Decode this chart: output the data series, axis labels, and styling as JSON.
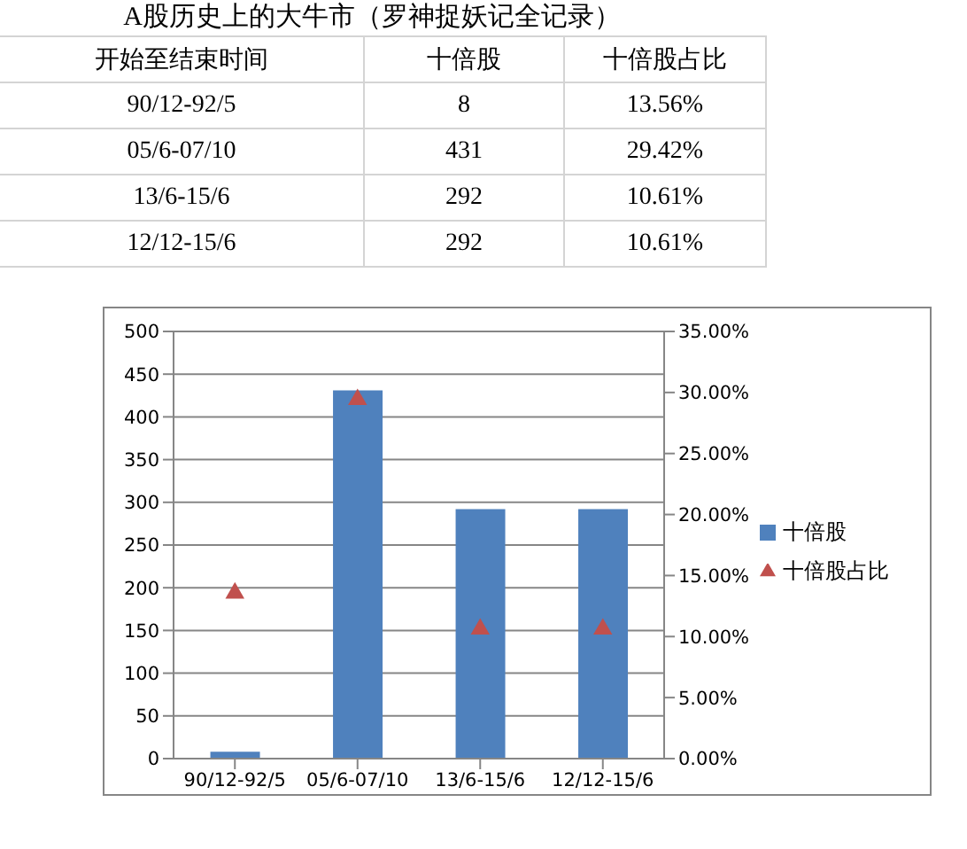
{
  "chart_data": [
    {
      "type": "other",
      "title": "A股历史上的大牛市（罗神捉妖记全记录）",
      "annotations": [
        "开始至结束时间",
        "十倍股",
        "十倍股占比",
        "90/12-92/5",
        "8",
        "13.56%",
        "05/6-07/10",
        "431",
        "29.42%",
        "13/6-15/6",
        "292",
        "10.61%",
        "12/12-15/6",
        "292",
        "10.61%"
      ]
    },
    {
      "type": "bar",
      "categories": [
        "90/12-92/5",
        "05/6-07/10",
        "13/6-15/6",
        "12/12-15/6"
      ],
      "series": [
        {
          "name": "十倍股",
          "color": "#4f81bd",
          "values": [
            8,
            431,
            292,
            292
          ]
        },
        {
          "name": "十倍股占比",
          "type": "scatter",
          "axis": "y2",
          "color": "#c0504d",
          "values": [
            13.56,
            29.42,
            10.61,
            10.61
          ]
        }
      ],
      "ylim": [
        0,
        500
      ],
      "yticks": [
        0,
        50,
        100,
        150,
        200,
        250,
        300,
        350,
        400,
        450,
        500
      ],
      "y2lim": [
        0,
        35
      ],
      "y2ticks": [
        {
          "value": 0,
          "label": "0.00%"
        },
        {
          "value": 5,
          "label": "5.00%"
        },
        {
          "value": 10,
          "label": "10.00%"
        },
        {
          "value": 15,
          "label": "15.00%"
        },
        {
          "value": 20,
          "label": "20.00%"
        },
        {
          "value": 25,
          "label": "25.00%"
        },
        {
          "value": 30,
          "label": "30.00%"
        },
        {
          "value": 35,
          "label": "35.00%"
        }
      ],
      "grid": "y",
      "legend": "right",
      "marker": "triangle"
    }
  ]
}
